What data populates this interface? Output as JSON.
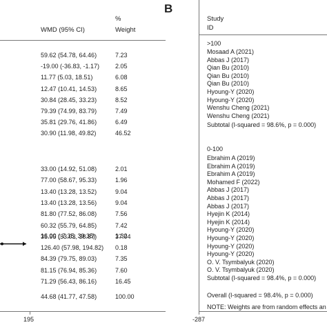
{
  "panel_b_letter": "B",
  "left": {
    "header": {
      "col_wmd": "WMD (95% CI)",
      "col_pct": "%",
      "col_weight": "Weight"
    },
    "groups": [
      {
        "rows": [
          {
            "ci": "59.62 (54.78, 64.46)",
            "w": "7.23"
          },
          {
            "ci": "-19.00 (-36.83, -1.17)",
            "w": "2.05"
          },
          {
            "ci": "11.77 (5.03, 18.51)",
            "w": "6.08"
          },
          {
            "ci": "12.47 (10.41, 14.53)",
            "w": "8.65"
          },
          {
            "ci": "30.84 (28.45, 33.23)",
            "w": "8.52"
          },
          {
            "ci": "79.39 (74.99, 83.79)",
            "w": "7.49"
          },
          {
            "ci": "35.81 (29.76, 41.86)",
            "w": "6.49"
          },
          {
            "ci": "30.90 (11.98, 49.82)",
            "w": "46.52"
          }
        ]
      },
      {
        "rows": [
          {
            "ci": "33.00 (14.92, 51.08)",
            "w": "2.01"
          },
          {
            "ci": "77.00 (58.67, 95.33)",
            "w": "1.96"
          },
          {
            "ci": "13.40 (13.28, 13.52)",
            "w": "9.04"
          },
          {
            "ci": "13.40 (13.28, 13.56)",
            "w": "9.04"
          },
          {
            "ci": "81.80 (77.52, 86.08)",
            "w": "7.56"
          },
          {
            "ci": "60.32 (55.79, 64.85)",
            "w": "7.42"
          },
          {
            "ci": "35.95 (33.03, 38.87)",
            "w": "37.04"
          }
        ]
      },
      {
        "rows": [
          {
            "ci": "16.00 (-7.35, 39.35)",
            "w": "1.32"
          },
          {
            "ci": "126.40 (57.98, 194.82)",
            "w": "0.18"
          },
          {
            "ci": "84.39 (79.75, 89.03)",
            "w": "7.35"
          },
          {
            "ci": "81.15 (76.94, 85.36)",
            "w": "7.60"
          },
          {
            "ci": "71.29 (56.43, 86.16)",
            "w": "16.45"
          }
        ]
      }
    ],
    "overall": {
      "ci": "44.68 (41.77, 47.58)",
      "w": "100.00"
    },
    "axis_tick": "195"
  },
  "right": {
    "header": {
      "col_study": "Study",
      "col_id": "ID"
    },
    "subgroup1": {
      "label": ">100",
      "studies": [
        "Mosaad A (2021)",
        "Abbas J (2017)",
        "Qian Bu (2010)",
        "Qian Bu (2010)",
        "Qian Bu (2010)",
        "Hyoung-Y (2020)",
        "Hyoung-Y (2020)",
        "Wenshu Cheng (2021)",
        "Wenshu Cheng (2021)"
      ],
      "subtotal": "Subtotal  (I-squared = 98.6%, p = 0.000)"
    },
    "subgroup2": {
      "label": "0-100",
      "studies": [
        "Ebrahim A (2019)",
        "Ebrahim A (2019)",
        "Ebrahim A (2019)",
        "Mohamed F (2022)",
        "Abbas J (2017)",
        "Abbas J (2017)",
        "Abbas J (2017)",
        "Hyejin K (2014)",
        "Hyejin K (2014)",
        "Hyoung-Y (2020)",
        "Hyoung-Y (2020)",
        "Hyoung-Y (2020)",
        "Hyoung-Y (2020)",
        "O. V. Tsymbalyuk (2020)",
        "O. V. Tsymbalyuk (2020)"
      ],
      "subtotal": "Subtotal  (I-squared = 98.4%, p = 0.000)"
    },
    "overall": "Overall  (I-squared = 98.4%, p = 0.000)",
    "note": "NOTE: Weights are from random effects an",
    "axis_tick": "-287"
  },
  "chart_data": {
    "type": "table",
    "columns": [
      "WMD (95% CI)",
      "% Weight"
    ],
    "rows": [
      [
        "59.62 (54.78, 64.46)",
        "7.23"
      ],
      [
        "-19.00 (-36.83, -1.17)",
        "2.05"
      ],
      [
        "11.77 (5.03, 18.51)",
        "6.08"
      ],
      [
        "12.47 (10.41, 14.53)",
        "8.65"
      ],
      [
        "30.84 (28.45, 33.23)",
        "8.52"
      ],
      [
        "79.39 (74.99, 83.79)",
        "7.49"
      ],
      [
        "35.81 (29.76, 41.86)",
        "6.49"
      ],
      [
        "30.90 (11.98, 49.82)",
        "46.52"
      ],
      [
        "33.00 (14.92, 51.08)",
        "2.01"
      ],
      [
        "77.00 (58.67, 95.33)",
        "1.96"
      ],
      [
        "13.40 (13.28, 13.52)",
        "9.04"
      ],
      [
        "13.40 (13.28, 13.56)",
        "9.04"
      ],
      [
        "81.80 (77.52, 86.08)",
        "7.56"
      ],
      [
        "60.32 (55.79, 64.85)",
        "7.42"
      ],
      [
        "35.95 (33.03, 38.87)",
        "37.04"
      ],
      [
        "16.00 (-7.35, 39.35)",
        "1.32"
      ],
      [
        "126.40 (57.98, 194.82)",
        "0.18"
      ],
      [
        "84.39 (79.75, 89.03)",
        "7.35"
      ],
      [
        "81.15 (76.94, 85.36)",
        "7.60"
      ],
      [
        "71.29 (56.43, 86.16)",
        "16.45"
      ],
      [
        "44.68 (41.77, 47.58)",
        "100.00"
      ]
    ],
    "highlighted_estimate": {
      "value": 126.4,
      "ci_low": 57.98,
      "ci_high": 194.82
    },
    "axis_ticks": [
      "195",
      "-287"
    ]
  }
}
